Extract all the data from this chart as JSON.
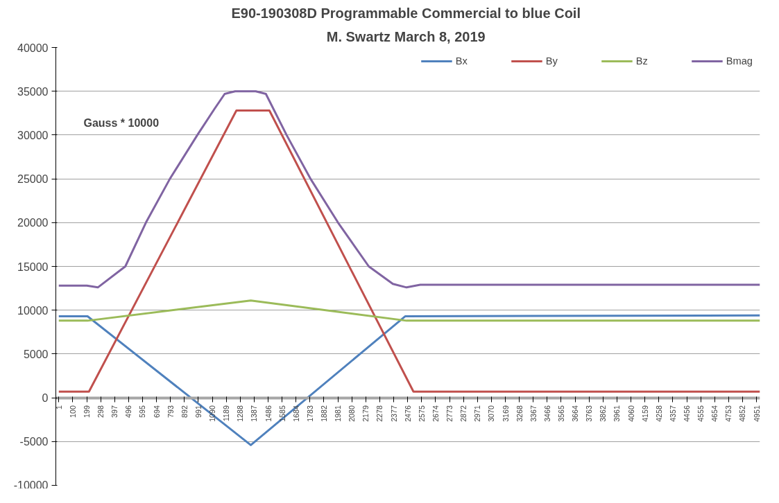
{
  "chart_data": {
    "type": "line",
    "title": "E90-190308D  Programmable Commercial to blue Coil",
    "subtitle": "M. Swartz  March 8, 2019",
    "annotations": [
      "Gauss * 10000"
    ],
    "xlim": [
      -20,
      4975
    ],
    "ylim": [
      -10000,
      40000
    ],
    "xticks": [
      1,
      100,
      199,
      298,
      397,
      496,
      595,
      694,
      793,
      892,
      991,
      1090,
      1189,
      1288,
      1387,
      1486,
      1585,
      1684,
      1783,
      1882,
      1981,
      2080,
      2179,
      2278,
      2377,
      2476,
      2575,
      2674,
      2773,
      2872,
      2971,
      3070,
      3169,
      3268,
      3367,
      3466,
      3565,
      3664,
      3763,
      3862,
      3961,
      4060,
      4159,
      4258,
      4357,
      4456,
      4555,
      4654,
      4753,
      4852,
      4951
    ],
    "yticks": [
      -10000,
      -5000,
      0,
      5000,
      10000,
      15000,
      20000,
      25000,
      30000,
      35000,
      40000
    ],
    "grid": "y",
    "legend": "top right",
    "marker": "none",
    "line_style": "solid",
    "series": [
      {
        "name": "Bx",
        "color": "#4f81bd",
        "x": [
          1,
          205,
          1363,
          2458,
          4975
        ],
        "values": [
          9300,
          9300,
          -5400,
          9300,
          9400
        ]
      },
      {
        "name": "By",
        "color": "#c0504d",
        "x": [
          1,
          215,
          1261,
          1495,
          2517,
          4975
        ],
        "values": [
          700,
          700,
          32800,
          32800,
          700,
          700
        ]
      },
      {
        "name": "Bz",
        "color": "#9bbb59",
        "x": [
          1,
          205,
          1363,
          2468,
          4975
        ],
        "values": [
          8800,
          8800,
          11100,
          8800,
          8800
        ]
      },
      {
        "name": "Bmag",
        "color": "#8064a2",
        "x": [
          1,
          200,
          278,
          473,
          619,
          789,
          984,
          1106,
          1178,
          1252,
          1398,
          1470,
          1617,
          1787,
          1982,
          2200,
          2371,
          2468,
          2565,
          4975
        ],
        "values": [
          12800,
          12800,
          12600,
          15000,
          20000,
          25000,
          30000,
          33000,
          34700,
          35000,
          35000,
          34700,
          30000,
          25000,
          20000,
          15000,
          13000,
          12600,
          12900,
          12900
        ]
      }
    ]
  }
}
